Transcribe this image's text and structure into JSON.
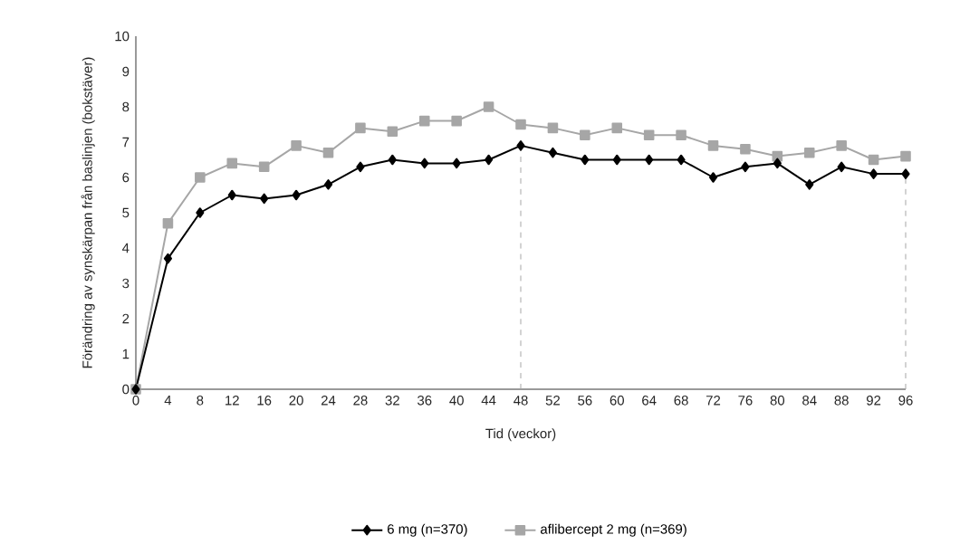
{
  "chart_data": {
    "type": "line",
    "xlabel": "Tid (veckor)",
    "ylabel": "Förändring av synskärpan från baslinjen (bokstäver)",
    "x": [
      0,
      4,
      8,
      12,
      16,
      20,
      24,
      28,
      32,
      36,
      40,
      44,
      48,
      52,
      56,
      60,
      64,
      68,
      72,
      76,
      80,
      84,
      88,
      92,
      96
    ],
    "series": [
      {
        "name": "6 mg (n=370)",
        "color": "#000000",
        "marker": "diamond",
        "values": [
          0,
          3.7,
          5.0,
          5.5,
          5.4,
          5.5,
          5.8,
          6.3,
          6.5,
          6.4,
          6.4,
          6.5,
          6.9,
          6.7,
          6.5,
          6.5,
          6.5,
          6.5,
          6.0,
          6.3,
          6.4,
          5.8,
          6.3,
          6.1,
          6.1
        ]
      },
      {
        "name": "aflibercept 2 mg (n=369)",
        "color": "#a6a6a6",
        "marker": "square",
        "values": [
          0,
          4.7,
          6.0,
          6.4,
          6.3,
          6.9,
          6.7,
          7.4,
          7.3,
          7.6,
          7.6,
          8.0,
          7.5,
          7.4,
          7.2,
          7.4,
          7.2,
          7.2,
          6.9,
          6.8,
          6.6,
          6.7,
          6.9,
          6.5,
          6.6
        ]
      }
    ],
    "xlim": [
      0,
      96
    ],
    "ylim": [
      0,
      10
    ],
    "xticks": [
      0,
      4,
      8,
      12,
      16,
      20,
      24,
      28,
      32,
      36,
      40,
      44,
      48,
      52,
      56,
      60,
      64,
      68,
      72,
      76,
      80,
      84,
      88,
      92,
      96
    ],
    "yticks": [
      0,
      1,
      2,
      3,
      4,
      5,
      6,
      7,
      8,
      9,
      10
    ],
    "ref_lines": [
      {
        "axis": "x",
        "value": 48,
        "color": "#a6a6a6",
        "line_style": "dashed"
      },
      {
        "axis": "x",
        "value": 96,
        "color": "#a6a6a6",
        "line_style": "dashed"
      }
    ],
    "grid": false,
    "legend": "bottom"
  }
}
